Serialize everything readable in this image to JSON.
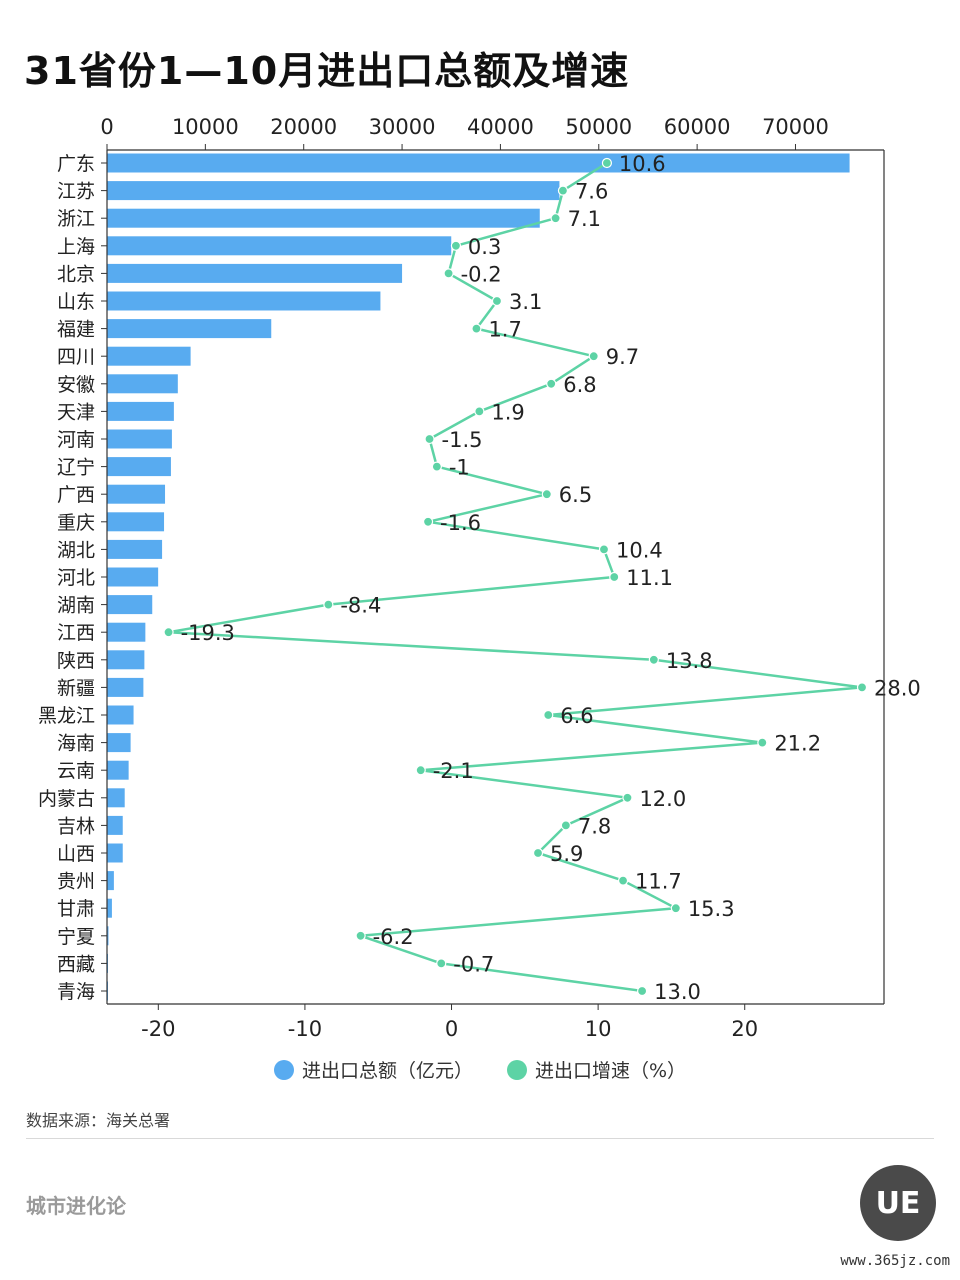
{
  "header": {
    "title": "31省份1—10月进出口总额及增速"
  },
  "colors": {
    "bar": "#58ABF0",
    "line": "#5DD3A5",
    "axis": "#333333"
  },
  "chart_data": {
    "type": "bar",
    "title": "31省份1—10月进出口总额及增速",
    "categories": [
      "广东",
      "江苏",
      "浙江",
      "上海",
      "北京",
      "山东",
      "福建",
      "四川",
      "安徽",
      "天津",
      "河南",
      "辽宁",
      "广西",
      "重庆",
      "湖北",
      "河北",
      "湖南",
      "江西",
      "陕西",
      "新疆",
      "黑龙江",
      "海南",
      "云南",
      "内蒙古",
      "吉林",
      "山西",
      "贵州",
      "甘肃",
      "宁夏",
      "西藏",
      "青海"
    ],
    "x_top_ticks": [
      "0",
      "10000",
      "20000",
      "30000",
      "40000",
      "50000",
      "60000",
      "70000"
    ],
    "x_top_lim": [
      0,
      79000
    ],
    "x_bottom_ticks": [
      "-20",
      "-10",
      "0",
      "10",
      "20"
    ],
    "x_bottom_lim": [
      -23.5,
      29.5
    ],
    "series": [
      {
        "name": "进出口总额（亿元）",
        "type": "bar",
        "values": [
          75500,
          46000,
          44000,
          35000,
          30000,
          27800,
          16700,
          8500,
          7200,
          6800,
          6600,
          6500,
          5900,
          5800,
          5600,
          5200,
          4600,
          3900,
          3800,
          3700,
          2700,
          2400,
          2200,
          1800,
          1600,
          1600,
          700,
          500,
          150,
          60,
          40
        ]
      },
      {
        "name": "进出口增速（%）",
        "type": "line",
        "values": [
          10.6,
          7.6,
          7.1,
          0.3,
          -0.2,
          3.1,
          1.7,
          9.7,
          6.8,
          1.9,
          -1.5,
          -1,
          6.5,
          -1.6,
          10.4,
          11.1,
          -8.4,
          -19.3,
          13.8,
          28.0,
          6.6,
          21.2,
          -2.1,
          12.0,
          7.8,
          5.9,
          11.7,
          15.3,
          -6.2,
          -0.7,
          13.0
        ],
        "labels": [
          "10.6",
          "7.6",
          "7.1",
          "0.3",
          "-0.2",
          "3.1",
          "1.7",
          "9.7",
          "6.8",
          "1.9",
          "-1.5",
          "-1",
          "6.5",
          "-1.6",
          "10.4",
          "11.1",
          "-8.4",
          "-19.3",
          "13.8",
          "28.0",
          "6.6",
          "21.2",
          "-2.1",
          "12.0",
          "7.8",
          "5.9",
          "11.7",
          "15.3",
          "-6.2",
          "-0.7",
          "13.0"
        ]
      }
    ],
    "legend_position": "bottom",
    "grid": false
  },
  "legend": {
    "bar_label": "进出口总额（亿元）",
    "line_label": "进出口增速（%）"
  },
  "footer": {
    "source": "数据来源：海关总署",
    "brand": "城市进化论",
    "logo_text": "UE",
    "site": "www.365jz.com"
  }
}
